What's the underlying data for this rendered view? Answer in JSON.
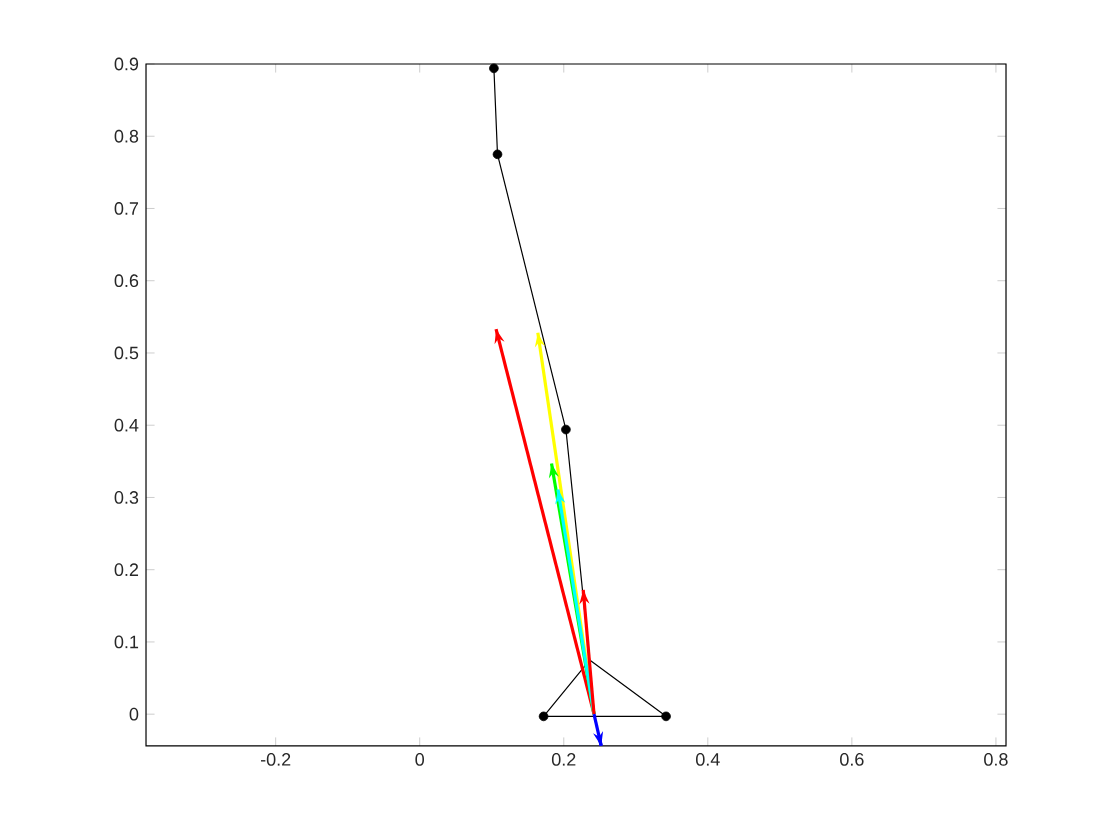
{
  "chart_data": {
    "type": "line",
    "xlim": [
      -0.38,
      0.814
    ],
    "ylim": [
      -0.044,
      0.9
    ],
    "xticks": [
      -0.2,
      0,
      0.2,
      0.4,
      0.6,
      0.8
    ],
    "yticks": [
      0,
      0.1,
      0.2,
      0.3,
      0.4,
      0.5,
      0.6,
      0.7,
      0.8,
      0.9
    ],
    "grid": false,
    "series": [
      {
        "color": "#000000",
        "x": [
          0.103,
          0.108,
          0.203,
          0.236,
          0.172,
          0.342,
          0.236
        ],
        "values": [
          0.894,
          0.775,
          0.394,
          0.075,
          -0.003,
          -0.003,
          0.075
        ]
      },
      {
        "type": "scatter",
        "color": "#000000",
        "x": [
          0.103,
          0.108,
          0.203,
          0.172,
          0.342
        ],
        "values": [
          0.894,
          0.775,
          0.394,
          -0.003,
          -0.003
        ]
      },
      {
        "color": "#ff0000",
        "x": [
          0.242,
          0.106
        ],
        "values": [
          0.0,
          0.533
        ]
      },
      {
        "color": "#ffff00",
        "x": [
          0.242,
          0.164
        ],
        "values": [
          0.0,
          0.528
        ]
      },
      {
        "color": "#00ff00",
        "x": [
          0.242,
          0.183
        ],
        "values": [
          0.0,
          0.347
        ]
      },
      {
        "color": "#00ffff",
        "x": [
          0.242,
          0.192
        ],
        "values": [
          0.0,
          0.311
        ]
      },
      {
        "color": "#ff0000",
        "x": [
          0.242,
          0.227
        ],
        "values": [
          0.0,
          0.172
        ]
      },
      {
        "color": "#0000ff",
        "x": [
          0.242,
          0.252
        ],
        "values": [
          0.0,
          -0.044
        ]
      }
    ]
  }
}
